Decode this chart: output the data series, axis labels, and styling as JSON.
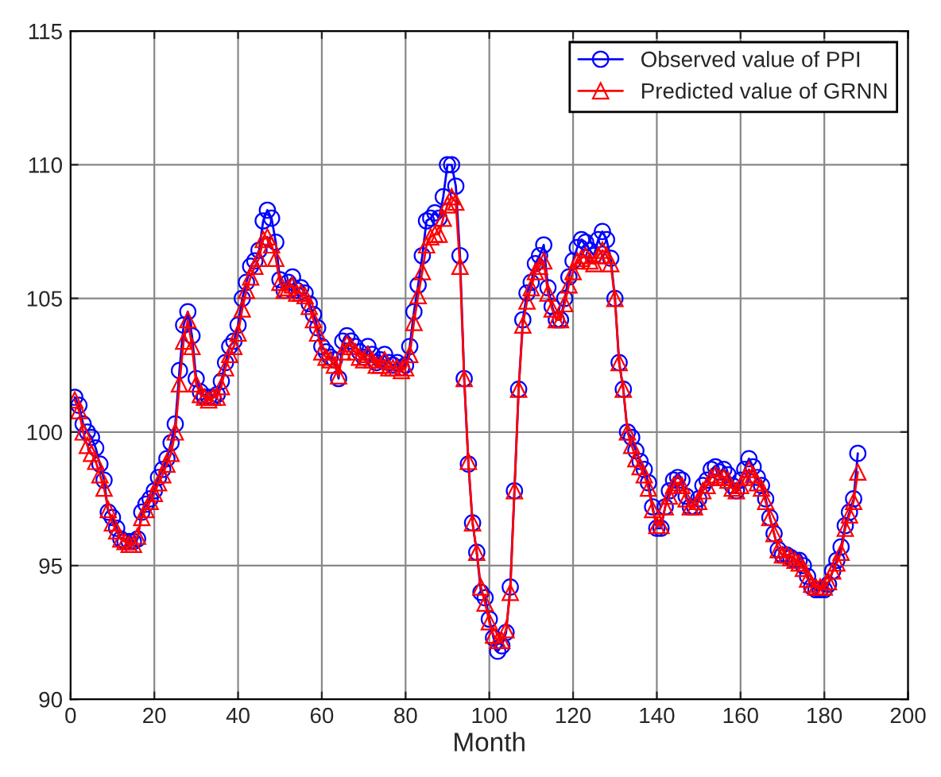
{
  "chart_data": {
    "type": "line",
    "xlabel": "Month",
    "x": [
      1,
      2,
      3,
      4,
      5,
      6,
      7,
      8,
      9,
      10,
      11,
      12,
      13,
      14,
      15,
      16,
      17,
      18,
      19,
      20,
      21,
      22,
      23,
      24,
      25,
      26,
      27,
      28,
      29,
      30,
      31,
      32,
      33,
      34,
      35,
      36,
      37,
      38,
      39,
      40,
      41,
      42,
      43,
      44,
      45,
      46,
      47,
      48,
      49,
      50,
      51,
      52,
      53,
      54,
      55,
      56,
      57,
      58,
      59,
      60,
      61,
      62,
      63,
      64,
      65,
      66,
      67,
      68,
      69,
      70,
      71,
      72,
      73,
      74,
      75,
      76,
      77,
      78,
      79,
      80,
      81,
      82,
      83,
      84,
      85,
      86,
      87,
      88,
      89,
      90,
      91,
      92,
      93,
      94,
      95,
      96,
      97,
      98,
      99,
      100,
      101,
      102,
      103,
      104,
      105,
      106,
      107,
      108,
      109,
      110,
      111,
      112,
      113,
      114,
      115,
      116,
      117,
      118,
      119,
      120,
      121,
      122,
      123,
      124,
      125,
      126,
      127,
      128,
      129,
      130,
      131,
      132,
      133,
      134,
      135,
      136,
      137,
      138,
      139,
      140,
      141,
      142,
      143,
      144,
      145,
      146,
      147,
      148,
      149,
      150,
      151,
      152,
      153,
      154,
      155,
      156,
      157,
      158,
      159,
      160,
      161,
      162,
      163,
      164,
      165,
      166,
      167,
      168,
      169,
      170,
      171,
      172,
      173,
      174,
      175,
      176,
      177,
      178,
      179,
      180,
      181,
      182,
      183,
      184,
      185,
      186,
      187,
      188
    ],
    "series": [
      {
        "name": "Observed value of PPI",
        "color": "#0000ff",
        "marker": "circle",
        "values": [
          101.3,
          101.0,
          100.3,
          100.0,
          99.8,
          99.4,
          98.8,
          98.2,
          97.0,
          96.8,
          96.4,
          96.0,
          95.9,
          95.9,
          95.9,
          96.0,
          97.0,
          97.3,
          97.5,
          97.8,
          98.3,
          98.6,
          99.0,
          99.6,
          100.3,
          102.3,
          104.0,
          104.5,
          103.6,
          102.0,
          101.5,
          101.3,
          101.3,
          101.3,
          101.4,
          101.9,
          102.6,
          103.2,
          103.4,
          104.0,
          105.0,
          105.6,
          106.2,
          106.4,
          106.8,
          107.9,
          108.3,
          108.0,
          107.1,
          105.7,
          105.3,
          105.6,
          105.8,
          105.3,
          105.4,
          105.2,
          104.8,
          104.4,
          103.9,
          103.2,
          103.0,
          102.8,
          102.7,
          102.0,
          103.4,
          103.6,
          103.4,
          103.2,
          103.0,
          102.8,
          103.2,
          102.9,
          102.6,
          102.7,
          102.9,
          102.6,
          102.5,
          102.6,
          102.4,
          102.5,
          103.2,
          104.5,
          105.5,
          106.6,
          107.9,
          108.0,
          108.2,
          108.0,
          108.8,
          110.0,
          110.0,
          109.2,
          106.6,
          102.0,
          98.8,
          96.6,
          95.5,
          94.0,
          93.8,
          93.0,
          92.3,
          91.8,
          92.0,
          92.5,
          94.2,
          97.8,
          101.6,
          104.2,
          105.2,
          105.6,
          106.3,
          106.6,
          107.0,
          105.4,
          104.7,
          104.2,
          104.2,
          105.0,
          105.8,
          106.4,
          106.9,
          107.2,
          107.1,
          106.8,
          106.6,
          107.2,
          107.5,
          107.2,
          106.5,
          105.0,
          102.6,
          101.6,
          100.0,
          99.8,
          99.3,
          98.9,
          98.6,
          98.1,
          97.2,
          96.4,
          96.4,
          97.2,
          97.8,
          98.2,
          98.3,
          98.2,
          97.6,
          97.2,
          97.2,
          97.5,
          98.0,
          98.2,
          98.6,
          98.7,
          98.5,
          98.6,
          98.4,
          98.0,
          97.8,
          98.2,
          98.6,
          99.0,
          98.7,
          98.3,
          98.0,
          97.5,
          96.8,
          96.2,
          95.6,
          95.4,
          95.4,
          95.3,
          95.2,
          95.2,
          95.0,
          94.6,
          94.2,
          94.1,
          94.1,
          94.1,
          94.3,
          94.8,
          95.2,
          95.7,
          96.5,
          97.0,
          97.5,
          99.2
        ]
      },
      {
        "name": "Predicted value of GRNN",
        "color": "#ff0000",
        "marker": "triangle",
        "values": [
          101.2,
          100.8,
          100.0,
          99.5,
          99.2,
          98.9,
          98.4,
          97.9,
          97.1,
          96.6,
          96.3,
          96.0,
          95.9,
          95.8,
          95.8,
          96.1,
          96.8,
          97.1,
          97.4,
          97.7,
          98.1,
          98.4,
          98.8,
          99.2,
          100.0,
          101.8,
          103.4,
          104.2,
          103.2,
          101.8,
          101.4,
          101.3,
          101.2,
          101.3,
          101.3,
          101.7,
          102.4,
          102.9,
          103.2,
          103.7,
          104.6,
          105.3,
          105.8,
          106.2,
          106.5,
          107.2,
          107.3,
          107.0,
          106.5,
          105.6,
          105.3,
          105.4,
          105.5,
          105.2,
          105.2,
          105.1,
          104.7,
          104.2,
          103.7,
          103.0,
          102.8,
          102.7,
          102.5,
          102.1,
          103.0,
          103.3,
          103.2,
          103.0,
          102.8,
          102.7,
          102.9,
          102.7,
          102.5,
          102.5,
          102.7,
          102.4,
          102.4,
          102.4,
          102.3,
          102.4,
          102.9,
          104.1,
          105.1,
          106.0,
          107.0,
          107.3,
          107.4,
          107.4,
          108.0,
          108.5,
          108.8,
          108.6,
          106.2,
          102.0,
          98.9,
          96.6,
          95.5,
          94.2,
          93.6,
          92.9,
          92.4,
          92.2,
          92.2,
          92.6,
          94.0,
          97.8,
          101.6,
          104.0,
          104.9,
          105.4,
          106.0,
          106.2,
          106.4,
          105.2,
          104.6,
          104.2,
          104.2,
          104.8,
          105.5,
          106.0,
          106.4,
          106.5,
          106.6,
          106.4,
          106.3,
          106.6,
          106.8,
          106.6,
          106.3,
          105.0,
          102.6,
          101.6,
          100.0,
          99.5,
          99.0,
          98.7,
          98.4,
          97.9,
          97.1,
          96.5,
          96.5,
          97.2,
          97.6,
          98.0,
          98.1,
          98.0,
          97.5,
          97.2,
          97.2,
          97.4,
          97.8,
          98.0,
          98.3,
          98.4,
          98.3,
          98.3,
          98.2,
          97.9,
          97.8,
          98.0,
          98.3,
          98.6,
          98.4,
          98.1,
          97.9,
          97.4,
          96.8,
          96.2,
          95.6,
          95.4,
          95.4,
          95.3,
          95.2,
          95.1,
          94.9,
          94.5,
          94.3,
          94.2,
          94.2,
          94.2,
          94.4,
          94.8,
          95.1,
          95.5,
          96.4,
          96.9,
          97.4,
          98.5
        ]
      }
    ],
    "xlim": [
      0,
      200
    ],
    "xticks": [
      0,
      20,
      40,
      60,
      80,
      100,
      120,
      140,
      160,
      180,
      200
    ],
    "ylim": [
      90,
      115
    ],
    "yticks": [
      90,
      95,
      100,
      105,
      110,
      115
    ],
    "grid": true,
    "legend": "top right",
    "line_style": "solid"
  }
}
